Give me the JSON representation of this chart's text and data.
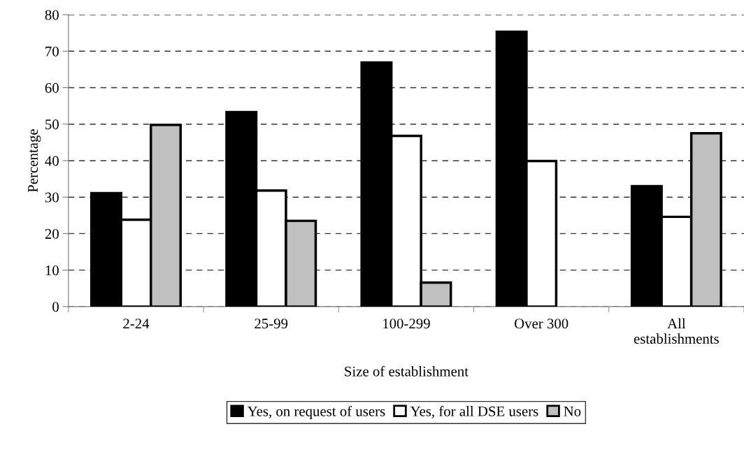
{
  "chart_data": {
    "type": "bar",
    "xlabel": "Size of establishment",
    "ylabel": "Percentage",
    "categories": [
      "2-24",
      "25-99",
      "100-299",
      "Over 300",
      "All\nestablishments"
    ],
    "series": [
      {
        "name": "Yes, on request of users",
        "color": "#000000",
        "values": [
          31.1,
          53.3,
          66.9,
          75.3,
          33.0
        ]
      },
      {
        "name": "Yes, for all DSE users",
        "color": "#ffffff",
        "values": [
          23.8,
          31.8,
          46.8,
          39.9,
          24.6
        ]
      },
      {
        "name": "No",
        "color": "#c0c0c0",
        "values": [
          49.8,
          23.5,
          6.6,
          null,
          47.5
        ]
      }
    ],
    "ylim": [
      0,
      80
    ],
    "yticks": [
      0,
      10,
      20,
      30,
      40,
      50,
      60,
      70,
      80
    ],
    "grid": "y",
    "legend": "bottom"
  }
}
